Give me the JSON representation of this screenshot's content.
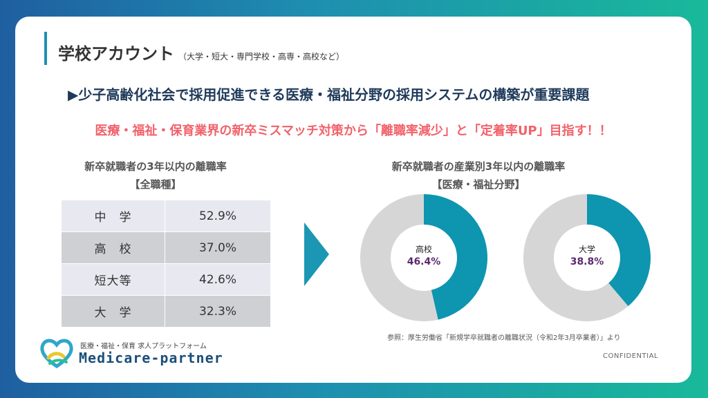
{
  "header": {
    "title": "学校アカウント",
    "title_sub": "（大学・短大・専門学校・高専・高校など）",
    "headline": "▶少子高齢化社会で採用促進できる医療・福祉分野の採用システムの構築が重要課題",
    "subheadline": "医療・福祉・保育業界の新卒ミスマッチ対策から「離職率減少」と「定着率UP」目指す！！"
  },
  "left": {
    "title_line1": "新卒就職者の3年以内の離職率",
    "title_line2": "【全職種】",
    "rows": [
      {
        "label": "中　学",
        "value": "52.9%"
      },
      {
        "label": "高　校",
        "value": "37.0%"
      },
      {
        "label": "短大等",
        "value": "42.6%"
      },
      {
        "label": "大　学",
        "value": "32.3%"
      }
    ]
  },
  "right": {
    "title_line1": "新卒就職者の産業別3年以内の離職率",
    "title_line2": "【医療・福祉分野】",
    "source": "参照：厚生労働省「新規学卒就職者の離職状況（令和2年3月卒業者）」より"
  },
  "chart_data": [
    {
      "type": "pie",
      "title": "高校",
      "values": [
        46.4,
        53.6
      ],
      "labels": [
        "高校",
        ""
      ],
      "data_label": "46.4%",
      "colors": [
        "#0e95b0",
        "#d6d6d6"
      ]
    },
    {
      "type": "pie",
      "title": "大学",
      "values": [
        38.8,
        61.2
      ],
      "labels": [
        "大学",
        ""
      ],
      "data_label": "38.8%",
      "colors": [
        "#0e95b0",
        "#d6d6d6"
      ]
    }
  ],
  "footer": {
    "logo_sub": "医療・福祉・保育 求人プラットフォーム",
    "logo_main": "Medicare-partner",
    "confidential": "CONFIDENTIAL"
  },
  "colors": {
    "accent": "#1d8fae",
    "red": "#f2616a",
    "donut_fill": "#0e95b0",
    "donut_rest": "#d6d6d6"
  }
}
